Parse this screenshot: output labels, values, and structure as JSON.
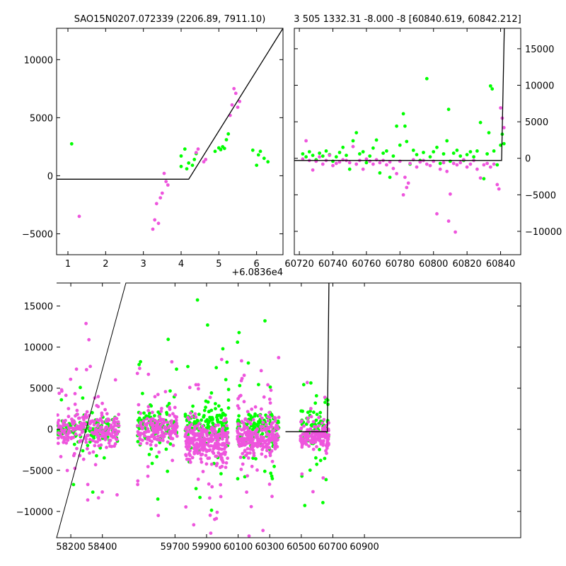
{
  "colors": {
    "green": "#00ff00",
    "magenta": "#ee55dd",
    "model": "#000000",
    "frame": "#000000"
  },
  "chart_data": [
    {
      "type": "scatter",
      "title": "SAO15N0207.072339 (2206.89, 7911.10)",
      "xlabel": "",
      "ylabel": "",
      "xlim": [
        0.7,
        6.7
      ],
      "ylim": [
        -6800,
        12700
      ],
      "xticks": [
        1,
        2,
        3,
        4,
        5,
        6
      ],
      "yticks": [
        -5000,
        0,
        5000,
        10000
      ],
      "yaxis_side": "left",
      "series": [
        {
          "name": "green",
          "points": [
            [
              1.1,
              2750
            ],
            [
              4.0,
              800
            ],
            [
              4.0,
              1700
            ],
            [
              4.1,
              2300
            ],
            [
              4.15,
              600
            ],
            [
              4.2,
              1100
            ],
            [
              4.3,
              900
            ],
            [
              4.35,
              1400
            ],
            [
              4.4,
              1900
            ],
            [
              4.9,
              2100
            ],
            [
              5.0,
              2400
            ],
            [
              5.05,
              2250
            ],
            [
              5.1,
              2500
            ],
            [
              5.15,
              2350
            ],
            [
              5.2,
              3100
            ],
            [
              5.25,
              3600
            ],
            [
              5.9,
              2200
            ],
            [
              6.0,
              900
            ],
            [
              6.05,
              1800
            ],
            [
              6.1,
              2100
            ],
            [
              6.2,
              1500
            ],
            [
              6.3,
              1200
            ]
          ]
        },
        {
          "name": "magenta",
          "points": [
            [
              1.3,
              -3500
            ],
            [
              3.25,
              -4600
            ],
            [
              3.3,
              -3800
            ],
            [
              3.35,
              -2400
            ],
            [
              3.4,
              -4100
            ],
            [
              3.45,
              -1900
            ],
            [
              3.5,
              -1500
            ],
            [
              3.55,
              200
            ],
            [
              3.6,
              -500
            ],
            [
              3.65,
              -800
            ],
            [
              4.4,
              2000
            ],
            [
              4.45,
              2300
            ],
            [
              4.6,
              1200
            ],
            [
              4.65,
              1400
            ],
            [
              5.3,
              5200
            ],
            [
              5.35,
              6100
            ],
            [
              5.4,
              7500
            ],
            [
              5.45,
              7100
            ],
            [
              5.5,
              5900
            ],
            [
              5.55,
              6400
            ]
          ]
        }
      ],
      "model": [
        [
          0.7,
          -300
        ],
        [
          4.2,
          -300
        ],
        [
          6.7,
          12700
        ]
      ]
    },
    {
      "type": "scatter",
      "title": "3 505 1332.31 -8.000 -8 [60840.619, 60842.212]",
      "xlabel": "",
      "ylabel": "",
      "xlim": [
        60717,
        60852
      ],
      "ylim": [
        -13200,
        17800
      ],
      "xticks": [
        60720,
        60740,
        60760,
        60780,
        60800,
        60820,
        60840
      ],
      "yticks": [
        -10000,
        -5000,
        0,
        5000,
        10000,
        15000
      ],
      "yaxis_side": "right",
      "offset_label": "+6.0836e4",
      "series": [
        {
          "name": "green",
          "points": [
            [
              60722,
              600
            ],
            [
              60724,
              200
            ],
            [
              60726,
              900
            ],
            [
              60728,
              400
            ],
            [
              60730,
              -200
            ],
            [
              60732,
              700
            ],
            [
              60734,
              300
            ],
            [
              60736,
              1000
            ],
            [
              60738,
              500
            ],
            [
              60740,
              -400
            ],
            [
              60742,
              200
            ],
            [
              60744,
              800
            ],
            [
              60746,
              1500
            ],
            [
              60748,
              400
            ],
            [
              60750,
              -1500
            ],
            [
              60752,
              2400
            ],
            [
              60754,
              3500
            ],
            [
              60756,
              600
            ],
            [
              60758,
              900
            ],
            [
              60760,
              -600
            ],
            [
              60762,
              300
            ],
            [
              60764,
              1400
            ],
            [
              60766,
              2500
            ],
            [
              60768,
              -2000
            ],
            [
              60770,
              700
            ],
            [
              60772,
              1000
            ],
            [
              60774,
              -2600
            ],
            [
              60776,
              300
            ],
            [
              60778,
              4400
            ],
            [
              60780,
              1800
            ],
            [
              60782,
              6100
            ],
            [
              60783,
              4400
            ],
            [
              60784,
              2300
            ],
            [
              60786,
              -800
            ],
            [
              60788,
              1100
            ],
            [
              60790,
              500
            ],
            [
              60792,
              -300
            ],
            [
              60794,
              800
            ],
            [
              60796,
              10900
            ],
            [
              60798,
              200
            ],
            [
              60800,
              900
            ],
            [
              60802,
              1500
            ],
            [
              60804,
              -700
            ],
            [
              60806,
              600
            ],
            [
              60808,
              2400
            ],
            [
              60809,
              6700
            ],
            [
              60810,
              -400
            ],
            [
              60812,
              700
            ],
            [
              60814,
              1100
            ],
            [
              60816,
              300
            ],
            [
              60818,
              -300
            ],
            [
              60820,
              500
            ],
            [
              60822,
              900
            ],
            [
              60824,
              200
            ],
            [
              60826,
              1000
            ],
            [
              60828,
              4900
            ],
            [
              60830,
              -2800
            ],
            [
              60832,
              600
            ],
            [
              60833,
              3500
            ],
            [
              60834,
              9900
            ],
            [
              60835,
              9500
            ],
            [
              60836,
              1000
            ],
            [
              60838,
              -900
            ],
            [
              60840,
              1800
            ],
            [
              60841,
              3300
            ],
            [
              60842,
              2000
            ]
          ]
        },
        {
          "name": "magenta",
          "points": [
            [
              60722,
              -100
            ],
            [
              60724,
              2400
            ],
            [
              60726,
              -300
            ],
            [
              60728,
              -1600
            ],
            [
              60730,
              -400
            ],
            [
              60732,
              200
            ],
            [
              60734,
              -800
            ],
            [
              60736,
              -300
            ],
            [
              60738,
              400
            ],
            [
              60740,
              -1000
            ],
            [
              60742,
              -700
            ],
            [
              60744,
              -500
            ],
            [
              60746,
              -200
            ],
            [
              60748,
              -300
            ],
            [
              60750,
              -600
            ],
            [
              60752,
              1600
            ],
            [
              60754,
              -800
            ],
            [
              60756,
              -300
            ],
            [
              60758,
              -1500
            ],
            [
              60760,
              -100
            ],
            [
              60762,
              -400
            ],
            [
              60764,
              -800
            ],
            [
              60766,
              -200
            ],
            [
              60768,
              -600
            ],
            [
              60770,
              -300
            ],
            [
              60772,
              -900
            ],
            [
              60774,
              -500
            ],
            [
              60776,
              -1400
            ],
            [
              60778,
              -2100
            ],
            [
              60780,
              -400
            ],
            [
              60782,
              -5000
            ],
            [
              60783,
              -2600
            ],
            [
              60784,
              -4000
            ],
            [
              60785,
              -3400
            ],
            [
              60786,
              -700
            ],
            [
              60788,
              -200
            ],
            [
              60790,
              -1200
            ],
            [
              60792,
              -500
            ],
            [
              60794,
              -300
            ],
            [
              60796,
              -800
            ],
            [
              60798,
              -1000
            ],
            [
              60800,
              -400
            ],
            [
              60802,
              -7600
            ],
            [
              60804,
              -1500
            ],
            [
              60806,
              -600
            ],
            [
              60808,
              -1800
            ],
            [
              60809,
              -8600
            ],
            [
              60810,
              -4900
            ],
            [
              60812,
              -700
            ],
            [
              60813,
              -10100
            ],
            [
              60814,
              -900
            ],
            [
              60816,
              -600
            ],
            [
              60818,
              -200
            ],
            [
              60820,
              -1200
            ],
            [
              60822,
              -800
            ],
            [
              60824,
              -300
            ],
            [
              60826,
              -1500
            ],
            [
              60828,
              -2700
            ],
            [
              60830,
              -900
            ],
            [
              60832,
              -700
            ],
            [
              60834,
              -1200
            ],
            [
              60836,
              -800
            ],
            [
              60838,
              -3600
            ],
            [
              60839,
              -4200
            ],
            [
              60840,
              6900
            ],
            [
              60841,
              5500
            ],
            [
              60842,
              4200
            ]
          ]
        }
      ],
      "model": [
        [
          60717,
          -300
        ],
        [
          60840.6,
          -300
        ],
        [
          60842.2,
          17800
        ]
      ]
    },
    {
      "type": "scatter",
      "title": "",
      "xlabel": "",
      "ylabel": "",
      "xlim": [
        58110,
        61050
      ],
      "ylim": [
        -13200,
        17800
      ],
      "xticks": [
        58200,
        58400,
        59700,
        59900,
        60100,
        60300,
        60500,
        60700,
        60900
      ],
      "yticks": [
        -10000,
        -5000,
        0,
        5000,
        10000,
        15000
      ],
      "yaxis_side": "left",
      "xtick_position_x": [
        58200,
        58400,
        58860,
        59060,
        59260,
        59460,
        59660,
        59860,
        60060
      ],
      "segments": [
        {
          "xmin": 58110,
          "xmax": 58505,
          "green_n": 140,
          "magenta_n": 250,
          "green_c": 50,
          "magenta_c": -100,
          "green_s": 1200,
          "magenta_s": 1700
        },
        {
          "xmin": 58600,
          "xmax": 59870,
          "green_n": 110,
          "magenta_n": 180,
          "green_c": 200,
          "magenta_c": 0,
          "green_s": 2000,
          "magenta_s": 1800,
          "cover": [
            58620,
            58875
          ]
        },
        {
          "xmin": 58920,
          "xmax": 59210,
          "green_n": 160,
          "magenta_n": 280,
          "green_c": 400,
          "magenta_c": -1600,
          "green_s": 2400,
          "magenta_s": 2200,
          "cover": [
            58925,
            59200
          ]
        },
        {
          "xmin": 59250,
          "xmax": 59530,
          "green_n": 140,
          "magenta_n": 260,
          "green_c": 200,
          "magenta_c": -1000,
          "green_s": 1800,
          "magenta_s": 2000,
          "cover": [
            59255,
            59520
          ]
        },
        {
          "xmin": 59600,
          "xmax": 59910,
          "green_n": 90,
          "magenta_n": 150,
          "green_c": 300,
          "magenta_c": -800,
          "green_s": 1900,
          "magenta_s": 1300,
          "cover": [
            59655,
            59835
          ]
        }
      ],
      "break_gap": [
        58505,
        58540
      ],
      "model": [
        [
          59560,
          -300
        ],
        [
          59825,
          -300
        ],
        [
          59835,
          17800
        ]
      ]
    }
  ]
}
